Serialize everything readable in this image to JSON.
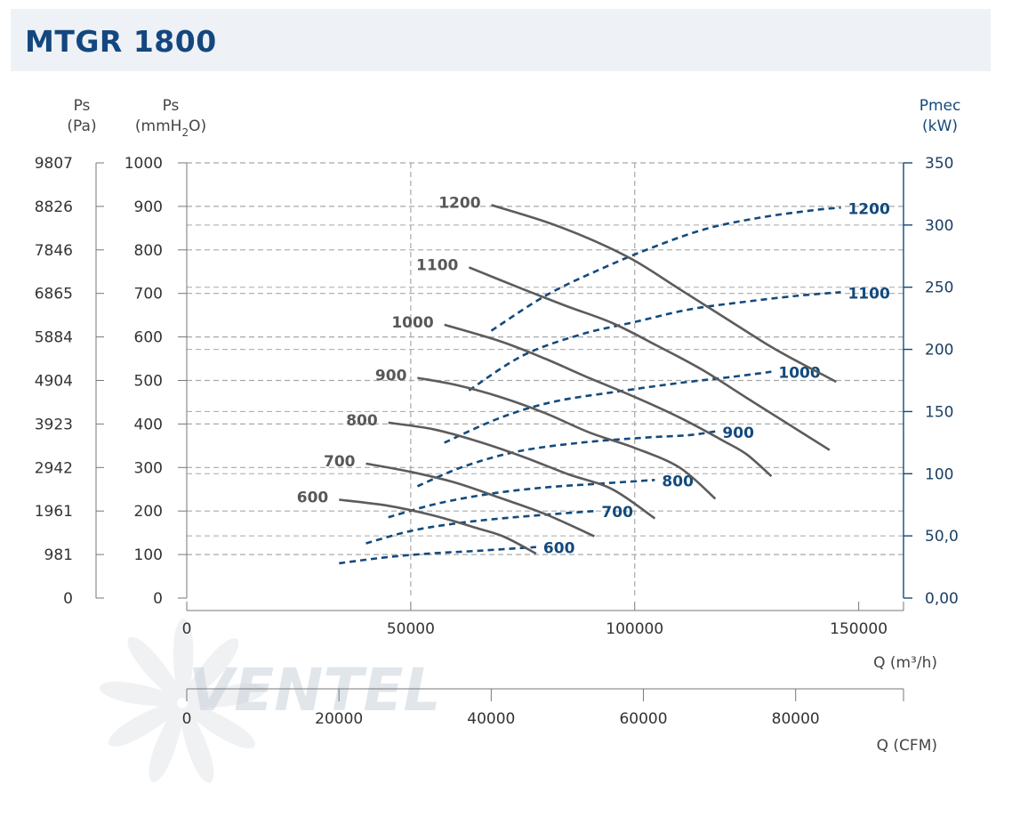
{
  "header": {
    "title": "MTGR 1800"
  },
  "chart_data": {
    "type": "line",
    "title": "MTGR 1800",
    "x_axis": {
      "label": "Q (m³/h)",
      "min": 0,
      "max": 160000,
      "ticks": [
        "0",
        "50000",
        "100000",
        "150000"
      ],
      "tick_values": [
        0,
        50000,
        100000,
        150000
      ]
    },
    "x2_axis": {
      "label": "Q (CFM)",
      "min": 0,
      "max": 94171,
      "ticks": [
        "0",
        "20000",
        "40000",
        "60000",
        "80000"
      ],
      "tick_values": [
        0,
        20000,
        40000,
        60000,
        80000
      ]
    },
    "y_left_pa": {
      "unit_name": "Ps",
      "unit": "(Pa)",
      "ticks": [
        "9807",
        "8826",
        "7846",
        "6865",
        "5884",
        "4904",
        "3923",
        "2942",
        "1961",
        "981",
        "0"
      ],
      "tick_values": [
        9807,
        8826,
        7846,
        6865,
        5884,
        4904,
        3923,
        2942,
        1961,
        981,
        0
      ]
    },
    "y_left_mmh2o": {
      "unit_name": "Ps",
      "unit_prefix": "(mmH",
      "unit_sub": "2",
      "unit_suffix": "O)",
      "min": 0,
      "max": 1000,
      "ticks": [
        "1000",
        "900",
        "800",
        "700",
        "600",
        "500",
        "400",
        "300",
        "200",
        "100",
        "0"
      ],
      "tick_values": [
        1000,
        900,
        800,
        700,
        600,
        500,
        400,
        300,
        200,
        100,
        0
      ]
    },
    "y_right_kw": {
      "unit_name": "Pmec",
      "unit": "(kW)",
      "min": 0,
      "max": 350,
      "ticks": [
        "350",
        "300",
        "250",
        "200",
        "150",
        "100",
        "50,0",
        "0,00"
      ],
      "tick_values": [
        350,
        300,
        250,
        200,
        150,
        100,
        50,
        0
      ]
    },
    "grid": true,
    "pressure_series": [
      {
        "name": "1200",
        "label": "1200",
        "points": [
          [
            68000,
            903
          ],
          [
            80000,
            865
          ],
          [
            90000,
            825
          ],
          [
            100000,
            775
          ],
          [
            110000,
            710
          ],
          [
            120000,
            645
          ],
          [
            130000,
            580
          ],
          [
            137000,
            540
          ],
          [
            145000,
            497
          ]
        ]
      },
      {
        "name": "1100",
        "label": "1100",
        "points": [
          [
            63000,
            760
          ],
          [
            75000,
            710
          ],
          [
            85000,
            670
          ],
          [
            95000,
            632
          ],
          [
            105000,
            580
          ],
          [
            115000,
            525
          ],
          [
            125000,
            460
          ],
          [
            135000,
            395
          ],
          [
            143500,
            340
          ]
        ]
      },
      {
        "name": "1000",
        "label": "1000",
        "points": [
          [
            57500,
            628
          ],
          [
            70000,
            590
          ],
          [
            80000,
            550
          ],
          [
            90000,
            505
          ],
          [
            100000,
            462
          ],
          [
            110000,
            415
          ],
          [
            120000,
            360
          ],
          [
            125000,
            330
          ],
          [
            130500,
            280
          ]
        ]
      },
      {
        "name": "900",
        "label": "900",
        "points": [
          [
            51500,
            506
          ],
          [
            60000,
            490
          ],
          [
            70000,
            462
          ],
          [
            80000,
            425
          ],
          [
            90000,
            380
          ],
          [
            100000,
            345
          ],
          [
            110000,
            300
          ],
          [
            118000,
            228
          ]
        ]
      },
      {
        "name": "800",
        "label": "800",
        "points": [
          [
            45000,
            403
          ],
          [
            55000,
            388
          ],
          [
            65000,
            360
          ],
          [
            75000,
            325
          ],
          [
            85000,
            285
          ],
          [
            95000,
            250
          ],
          [
            104500,
            183
          ]
        ]
      },
      {
        "name": "700",
        "label": "700",
        "points": [
          [
            40000,
            309
          ],
          [
            50000,
            290
          ],
          [
            60000,
            265
          ],
          [
            70000,
            230
          ],
          [
            80000,
            193
          ],
          [
            91000,
            142
          ]
        ]
      },
      {
        "name": "600",
        "label": "600",
        "points": [
          [
            34000,
            226
          ],
          [
            45000,
            212
          ],
          [
            55000,
            190
          ],
          [
            65000,
            160
          ],
          [
            71000,
            140
          ],
          [
            78000,
            102
          ]
        ]
      }
    ],
    "power_series": [
      {
        "name": "1200",
        "label": "1200",
        "points": [
          [
            68000,
            215
          ],
          [
            80000,
            243
          ],
          [
            92000,
            264
          ],
          [
            104000,
            282
          ],
          [
            116000,
            297
          ],
          [
            128000,
            306
          ],
          [
            140000,
            312
          ],
          [
            146000,
            314
          ]
        ]
      },
      {
        "name": "1100",
        "label": "1100",
        "points": [
          [
            63000,
            167
          ],
          [
            75000,
            195
          ],
          [
            88000,
            212
          ],
          [
            100000,
            222
          ],
          [
            112000,
            232
          ],
          [
            124000,
            238
          ],
          [
            136000,
            243
          ],
          [
            146000,
            246
          ]
        ]
      },
      {
        "name": "1000",
        "label": "1000",
        "points": [
          [
            57500,
            125
          ],
          [
            70000,
            145
          ],
          [
            82000,
            158
          ],
          [
            96000,
            166
          ],
          [
            110000,
            173
          ],
          [
            122000,
            178
          ],
          [
            130500,
            182
          ]
        ]
      },
      {
        "name": "900",
        "label": "900",
        "points": [
          [
            51500,
            90
          ],
          [
            62000,
            106
          ],
          [
            74000,
            118
          ],
          [
            88000,
            125
          ],
          [
            102000,
            129
          ],
          [
            112000,
            131
          ],
          [
            118000,
            134
          ]
        ]
      },
      {
        "name": "800",
        "label": "800",
        "points": [
          [
            45000,
            65
          ],
          [
            56000,
            76
          ],
          [
            68000,
            84
          ],
          [
            80000,
            89
          ],
          [
            92000,
            92
          ],
          [
            104500,
            95
          ]
        ]
      },
      {
        "name": "700",
        "label": "700",
        "points": [
          [
            40000,
            44
          ],
          [
            50000,
            54
          ],
          [
            60000,
            60
          ],
          [
            70000,
            64
          ],
          [
            80000,
            67
          ],
          [
            91000,
            70
          ]
        ]
      },
      {
        "name": "600",
        "label": "600",
        "points": [
          [
            34000,
            28
          ],
          [
            45000,
            33
          ],
          [
            55000,
            36
          ],
          [
            65000,
            38
          ],
          [
            78000,
            41
          ]
        ]
      }
    ],
    "watermark": "VENTEL",
    "colors": {
      "pressure_curve": "#5c5c5c",
      "power_curve": "#134a7c",
      "axis_right": "#134a7c",
      "title": "#14477f",
      "grid": "#a8a8a8"
    }
  }
}
